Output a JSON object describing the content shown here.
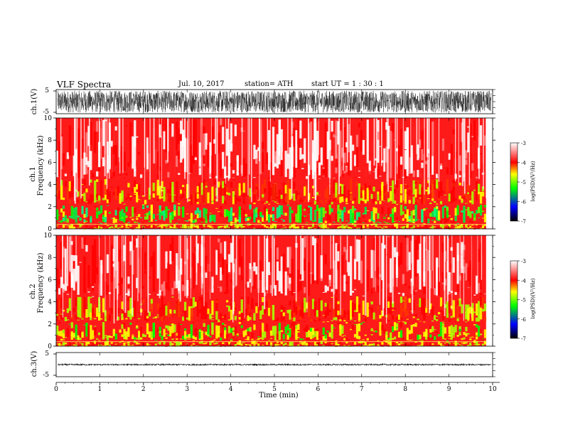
{
  "header": {
    "title": "VLF  Spectra",
    "date": "Jul.  10,  2017",
    "station": "station= ATH",
    "start_ut": "start  UT  =    1  : 30 : 1"
  },
  "chart_data": [
    {
      "type": "line",
      "name": "ch1-waveform",
      "ylabel": "ch.1(V)",
      "yticks": [
        "5",
        "-5"
      ],
      "ylim": [
        -5,
        5
      ],
      "xlim": [
        0,
        10
      ],
      "amplitude_range": [
        -4.5,
        4.5
      ],
      "color": "#000000"
    },
    {
      "type": "heatmap",
      "name": "ch1-spectrogram",
      "ylabel": [
        "ch.1",
        "Frequency  (kHz)"
      ],
      "yticks": [
        "0",
        "2",
        "4",
        "6",
        "8",
        "10"
      ],
      "ylim": [
        0,
        10
      ],
      "xlim": [
        0,
        9.85
      ],
      "bands_khz": [
        {
          "from": 0,
          "to": 0.5,
          "level": "yellow"
        },
        {
          "from": 0.5,
          "to": 2.2,
          "level": "green"
        },
        {
          "from": 2.2,
          "to": 4.5,
          "level": "yellow-red"
        },
        {
          "from": 4.5,
          "to": 10,
          "level": "red-white"
        }
      ],
      "colorbar": {
        "label": "log(PSD)(V²/Hz)",
        "ticks": [
          "-3",
          "-4",
          "-5",
          "-6",
          "-7"
        ],
        "range": [
          -7,
          -3
        ],
        "colors": [
          "#000000",
          "#0000ff",
          "#00ff00",
          "#ffff00",
          "#ff0000",
          "#ffffff"
        ]
      }
    },
    {
      "type": "heatmap",
      "name": "ch2-spectrogram",
      "ylabel": [
        "ch.2",
        "Frequency  (kHz)"
      ],
      "yticks": [
        "0",
        "2",
        "4",
        "6",
        "8",
        "10"
      ],
      "ylim": [
        0,
        10
      ],
      "xlim": [
        0,
        9.85
      ],
      "bands_khz": [
        {
          "from": 0,
          "to": 0.5,
          "level": "yellow"
        },
        {
          "from": 0.5,
          "to": 2.2,
          "level": "yellow-green"
        },
        {
          "from": 2.2,
          "to": 4.5,
          "level": "yellow-red"
        },
        {
          "from": 4.5,
          "to": 10,
          "level": "red-white"
        }
      ],
      "colorbar": {
        "label": "log(PSD)(V²/Hz)",
        "ticks": [
          "-3",
          "-4",
          "-5",
          "-6",
          "-7"
        ],
        "range": [
          -7,
          -3
        ],
        "colors": [
          "#000000",
          "#0000ff",
          "#00ff00",
          "#ffff00",
          "#ff0000",
          "#ffffff"
        ]
      }
    },
    {
      "type": "line",
      "name": "ch3-waveform",
      "ylabel": "ch.3(V)",
      "yticks": [
        "5",
        "-5"
      ],
      "ylim": [
        -5,
        5
      ],
      "xlim": [
        0,
        10
      ],
      "amplitude_range": [
        -0.3,
        0.3
      ],
      "color": "#000000"
    }
  ],
  "xaxis": {
    "label": "Time  (min)",
    "ticks": [
      "0",
      "1",
      "2",
      "3",
      "4",
      "5",
      "6",
      "7",
      "8",
      "9",
      "10"
    ],
    "range": [
      0,
      10
    ]
  }
}
